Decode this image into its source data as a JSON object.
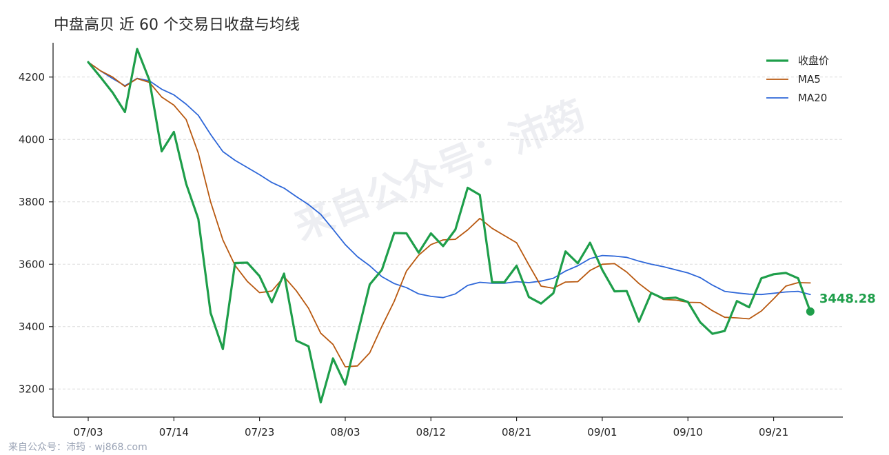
{
  "chart_data": {
    "type": "line",
    "title": "中盘高贝 近 60 个交易日收盘与均线",
    "x_tick_labels": [
      "07/03",
      "07/14",
      "07/23",
      "08/03",
      "08/12",
      "08/21",
      "09/01",
      "09/10",
      "09/21"
    ],
    "x_tick_index": [
      0,
      7,
      14,
      21,
      28,
      35,
      42,
      49,
      56
    ],
    "ylim": [
      3110,
      4310
    ],
    "y_ticks": [
      3200,
      3400,
      3600,
      3800,
      4000,
      4200
    ],
    "grid": "y-dashed",
    "legend_position": "top-right",
    "last_value_label": "3448.28",
    "watermark": "来自公众号：沛筠",
    "source_note": "来自公众号：沛筠 · wj868.com",
    "series": [
      {
        "name": "收盘价",
        "color": "#1e9e4a",
        "values": [
          4248,
          4200,
          4150,
          4088,
          4290,
          4190,
          3962,
          4024,
          3858,
          3745,
          3444,
          3328,
          3604,
          3605,
          3562,
          3478,
          3570,
          3355,
          3337,
          3157,
          3298,
          3214,
          3375,
          3535,
          3582,
          3700,
          3699,
          3637,
          3699,
          3658,
          3711,
          3845,
          3822,
          3542,
          3542,
          3595,
          3495,
          3474,
          3507,
          3641,
          3603,
          3669,
          3582,
          3513,
          3514,
          3416,
          3508,
          3490,
          3493,
          3479,
          3414,
          3377,
          3386,
          3482,
          3462,
          3555,
          3568,
          3572,
          3555,
          3448.28
        ]
      },
      {
        "name": "MA5",
        "color": "#b8580f",
        "values": [
          4248,
          4220,
          4200,
          4170,
          4195,
          4183,
          4136,
          4110,
          4064,
          3956,
          3800,
          3678,
          3596,
          3545,
          3509,
          3514,
          3560,
          3515,
          3459,
          3379,
          3343,
          3271,
          3274,
          3316,
          3401,
          3481,
          3578,
          3629,
          3663,
          3678,
          3680,
          3710,
          3747,
          3715,
          3692,
          3669,
          3598,
          3530,
          3523,
          3543,
          3544,
          3580,
          3600,
          3602,
          3575,
          3538,
          3508,
          3487,
          3485,
          3478,
          3477,
          3451,
          3430,
          3428,
          3425,
          3450,
          3489,
          3530,
          3541,
          3540
        ]
      },
      {
        "name": "MA20",
        "color": "#2d66d8",
        "values": [
          4248,
          4220,
          4195,
          4172,
          4196,
          4188,
          4161,
          4143,
          4113,
          4077,
          4016,
          3961,
          3933,
          3910,
          3887,
          3862,
          3844,
          3817,
          3791,
          3760,
          3712,
          3663,
          3624,
          3595,
          3560,
          3538,
          3525,
          3505,
          3497,
          3493,
          3505,
          3532,
          3542,
          3539,
          3539,
          3544,
          3541,
          3546,
          3555,
          3578,
          3595,
          3618,
          3628,
          3626,
          3622,
          3610,
          3600,
          3592,
          3582,
          3572,
          3557,
          3533,
          3513,
          3508,
          3504,
          3503,
          3507,
          3511,
          3513,
          3503
        ]
      }
    ]
  }
}
